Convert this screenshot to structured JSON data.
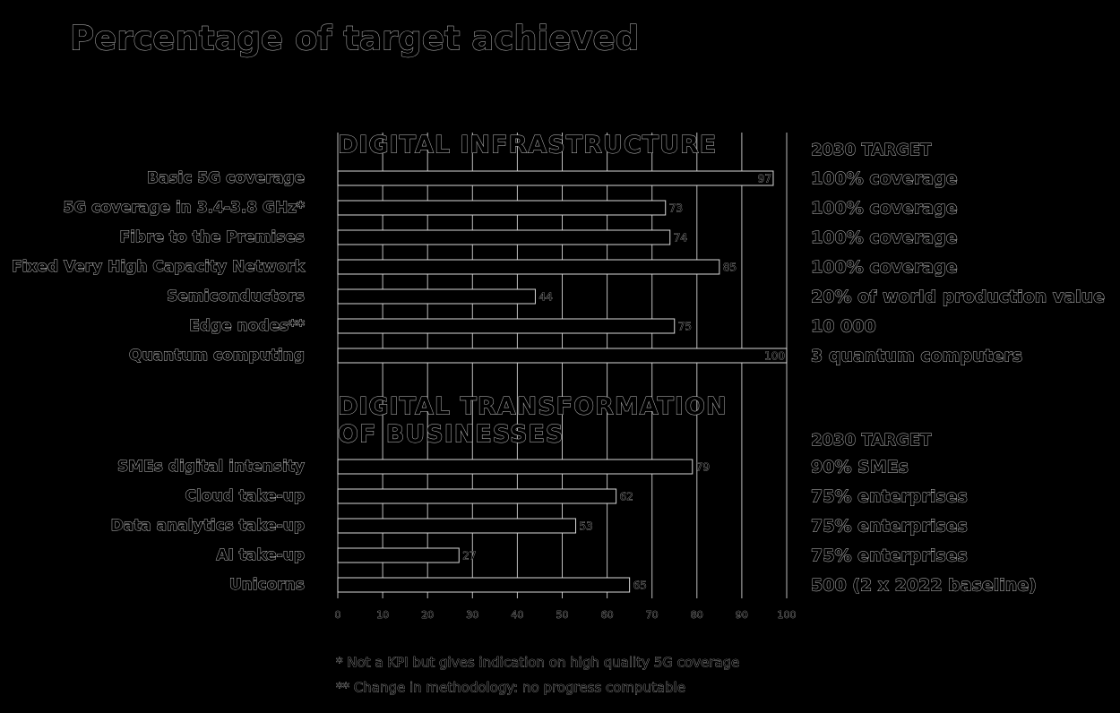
{
  "chart_data": {
    "type": "bar",
    "orientation": "horizontal",
    "title": "Percentage of target achieved",
    "xlim": [
      0,
      100
    ],
    "xticks": [
      0,
      10,
      20,
      30,
      40,
      50,
      60,
      70,
      80,
      90,
      100
    ],
    "grid": true,
    "color": "#000000",
    "sections": [
      {
        "title": [
          "DIGITAL INFRASTRUCTURE"
        ],
        "target_header": "2030 TARGET",
        "categories": [
          "Basic 5G coverage",
          "5G coverage in 3.4-3.8 GHz*",
          "Fibre to the Premises",
          "Fixed Very High Capacity Network",
          "Semiconductors",
          "Edge nodes**",
          "Quantum computing"
        ],
        "values": [
          97,
          73,
          74,
          85,
          44,
          75,
          100
        ],
        "targets": [
          "100% coverage",
          "100% coverage",
          "100% coverage",
          "100% coverage",
          "20% of world production value",
          "10 000",
          "3 quantum computers"
        ]
      },
      {
        "title": [
          "DIGITAL TRANSFORMATION",
          "OF BUSINESSES"
        ],
        "target_header": "2030 TARGET",
        "categories": [
          "SMEs digital intensity",
          "Cloud take-up",
          "Data analytics take-up",
          "AI take-up",
          "Unicorns"
        ],
        "values": [
          79,
          62,
          53,
          27,
          65
        ],
        "targets": [
          "90% SMEs",
          "75% enterprises",
          "75% enterprises",
          "75% enterprises",
          "500 (2 x 2022 baseline)"
        ]
      }
    ],
    "footnotes": [
      "* Not a KPI but gives indication on high quality 5G coverage",
      "** Change in methodology: no progress computable"
    ]
  }
}
